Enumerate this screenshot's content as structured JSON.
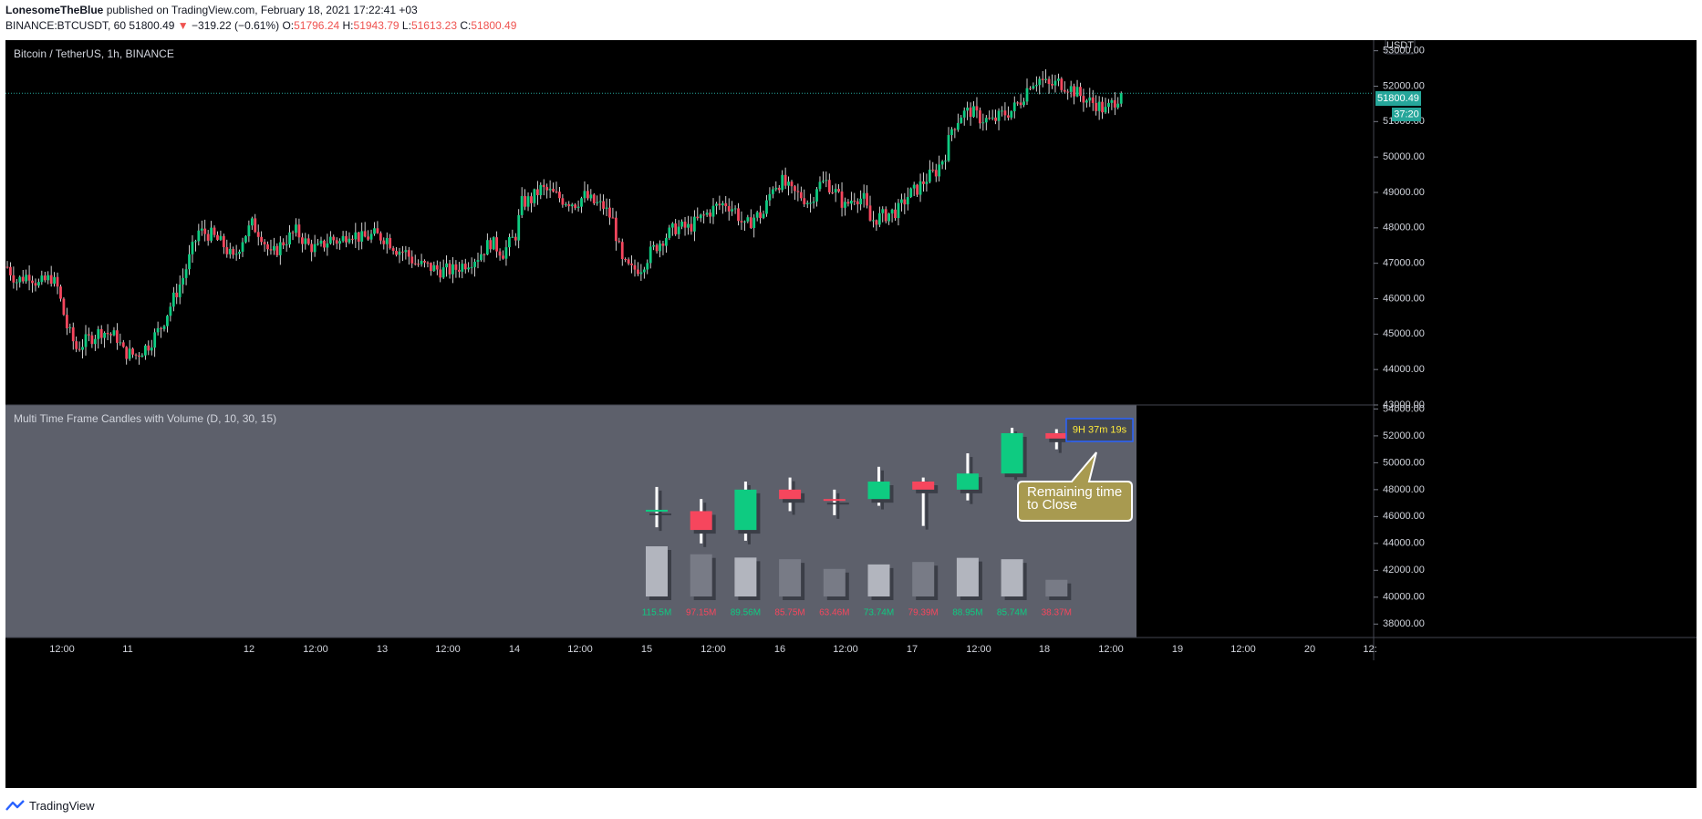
{
  "header": {
    "author": "LonesomeTheBlue",
    "published_text": "published on TradingView.com, February 18, 2021 17:22:41 +03",
    "symbol": "BINANCE:BTCUSDT, 60",
    "last": "51800.49",
    "change_arrow": "▼",
    "change": "−319.22 (−0.61%)",
    "o_label": "O:",
    "o_value": "51796.24",
    "h_label": "H:",
    "h_value": "51943.79",
    "l_label": "L:",
    "l_value": "51613.23",
    "c_label": "C:",
    "c_value": "51800.49"
  },
  "main_pane": {
    "title": "Bitcoin / TetherUS, 1h, BINANCE",
    "currency": "USDT",
    "price_badge": "51800.49",
    "countdown_badge": "37:20"
  },
  "indicator_pane": {
    "title": "Multi Time Frame Candles with Volume (D, 10, 30, 15)",
    "timer_label": "9H 37m 19s",
    "callout_text": "Remaining time to Close"
  },
  "footer": {
    "brand": "TradingView"
  },
  "colors": {
    "up": "#0ecb81",
    "down": "#f6465d",
    "indicator_bg": "#5d606b",
    "volume_up": "#b2b5be",
    "volume_down": "#787b86",
    "callout_bg": "#a89a50",
    "timer_text": "#ffeb3b"
  },
  "chart_data": [
    {
      "type": "candlestick",
      "title": "Bitcoin / TetherUS, 1h, BINANCE",
      "ylim": [
        43000,
        53300
      ],
      "y_ticks": [
        43000,
        44000,
        45000,
        46000,
        47000,
        48000,
        49000,
        50000,
        51000,
        52000,
        53000
      ],
      "x_tick_labels": [
        "12:00",
        "11",
        "12",
        "12:00",
        "13",
        "12:00",
        "14",
        "12:00",
        "15",
        "12:00",
        "16",
        "12:00",
        "17",
        "12:00",
        "18",
        "12:00",
        "19",
        "12:00",
        "20",
        "12:"
      ],
      "last_price": 51800.49,
      "path": [
        [
          0,
          46900
        ],
        [
          3,
          46500
        ],
        [
          7,
          46700
        ],
        [
          10,
          46400
        ],
        [
          14,
          46600
        ],
        [
          16,
          46300
        ],
        [
          19,
          45200
        ],
        [
          22,
          44600
        ],
        [
          25,
          44800
        ],
        [
          30,
          45100
        ],
        [
          35,
          44900
        ],
        [
          37,
          44500
        ],
        [
          41,
          44400
        ],
        [
          45,
          44700
        ],
        [
          49,
          45200
        ],
        [
          52,
          45800
        ],
        [
          56,
          46600
        ],
        [
          59,
          47400
        ],
        [
          61,
          47900
        ],
        [
          65,
          47800
        ],
        [
          69,
          47500
        ],
        [
          72,
          47100
        ],
        [
          75,
          47700
        ],
        [
          78,
          48100
        ],
        [
          81,
          47800
        ],
        [
          84,
          47200
        ],
        [
          88,
          47600
        ],
        [
          92,
          47900
        ],
        [
          96,
          47500
        ],
        [
          99,
          47400
        ],
        [
          103,
          47700
        ],
        [
          106,
          47600
        ],
        [
          109,
          47900
        ],
        [
          113,
          47700
        ],
        [
          117,
          47800
        ],
        [
          121,
          47700
        ],
        [
          124,
          47400
        ],
        [
          127,
          47300
        ],
        [
          130,
          47000
        ],
        [
          134,
          46900
        ],
        [
          138,
          46800
        ],
        [
          142,
          46800
        ],
        [
          146,
          47000
        ],
        [
          150,
          47200
        ],
        [
          154,
          47600
        ],
        [
          158,
          47300
        ],
        [
          162,
          47800
        ],
        [
          164,
          48700
        ],
        [
          167,
          48800
        ],
        [
          170,
          49100
        ],
        [
          173,
          49000
        ],
        [
          177,
          48800
        ],
        [
          181,
          48700
        ],
        [
          184,
          48900
        ],
        [
          187,
          48700
        ],
        [
          190,
          48600
        ],
        [
          193,
          48200
        ],
        [
          196,
          47000
        ],
        [
          199,
          46800
        ],
        [
          202,
          46900
        ],
        [
          205,
          47300
        ],
        [
          209,
          47700
        ],
        [
          213,
          48000
        ],
        [
          217,
          48000
        ],
        [
          220,
          48200
        ],
        [
          223,
          48400
        ],
        [
          226,
          48600
        ],
        [
          229,
          48700
        ],
        [
          232,
          48500
        ],
        [
          235,
          48000
        ],
        [
          238,
          48300
        ],
        [
          241,
          48400
        ],
        [
          244,
          49200
        ],
        [
          247,
          49300
        ],
        [
          250,
          49000
        ],
        [
          253,
          48900
        ],
        [
          256,
          48700
        ],
        [
          258,
          49200
        ],
        [
          261,
          49300
        ],
        [
          264,
          49000
        ],
        [
          267,
          48600
        ],
        [
          270,
          48900
        ],
        [
          273,
          48800
        ],
        [
          275,
          48200
        ],
        [
          278,
          48300
        ],
        [
          281,
          48400
        ],
        [
          284,
          48500
        ],
        [
          287,
          48900
        ],
        [
          290,
          49100
        ],
        [
          293,
          49400
        ],
        [
          296,
          49600
        ],
        [
          299,
          50100
        ],
        [
          301,
          50800
        ],
        [
          304,
          51200
        ],
        [
          307,
          51300
        ],
        [
          310,
          51100
        ],
        [
          314,
          51000
        ],
        [
          317,
          51200
        ],
        [
          320,
          51300
        ],
        [
          323,
          51600
        ],
        [
          326,
          52100
        ],
        [
          329,
          52200
        ],
        [
          332,
          52000
        ],
        [
          335,
          52100
        ],
        [
          338,
          52000
        ],
        [
          341,
          51800
        ],
        [
          344,
          51600
        ],
        [
          347,
          51500
        ],
        [
          350,
          51300
        ],
        [
          353,
          51600
        ],
        [
          355,
          51800
        ]
      ]
    },
    {
      "type": "candlestick",
      "title": "Multi Time Frame Candles with Volume (D, 10, 30, 15)",
      "ylim": [
        37000,
        54300
      ],
      "y_ticks": [
        38000,
        40000,
        42000,
        44000,
        46000,
        48000,
        50000,
        52000,
        54000
      ],
      "candles": [
        {
          "open": 46400,
          "high": 48200,
          "low": 45200,
          "close": 46500
        },
        {
          "open": 46400,
          "high": 47300,
          "low": 44000,
          "close": 45000
        },
        {
          "open": 45000,
          "high": 48600,
          "low": 44200,
          "close": 48000
        },
        {
          "open": 48000,
          "high": 48900,
          "low": 46400,
          "close": 47300
        },
        {
          "open": 47300,
          "high": 48000,
          "low": 46100,
          "close": 47200
        },
        {
          "open": 47300,
          "high": 49700,
          "low": 46800,
          "close": 48600
        },
        {
          "open": 48600,
          "high": 48900,
          "low": 45300,
          "close": 48000
        },
        {
          "open": 48000,
          "high": 50700,
          "low": 47200,
          "close": 49200
        },
        {
          "open": 49200,
          "high": 52600,
          "low": 49000,
          "close": 52200
        },
        {
          "open": 52200,
          "high": 52500,
          "low": 51000,
          "close": 51800
        }
      ],
      "volumes": [
        115.5,
        97.15,
        89.56,
        85.75,
        63.46,
        73.74,
        79.39,
        88.95,
        85.74,
        38.37
      ],
      "volume_labels": [
        "115.5M",
        "97.15M",
        "89.56M",
        "85.75M",
        "63.46M",
        "73.74M",
        "79.39M",
        "88.95M",
        "85.74M",
        "38.37M"
      ],
      "volume_colors": [
        "up",
        "down",
        "up",
        "down",
        "down",
        "up",
        "down",
        "up",
        "up",
        "down"
      ]
    }
  ]
}
